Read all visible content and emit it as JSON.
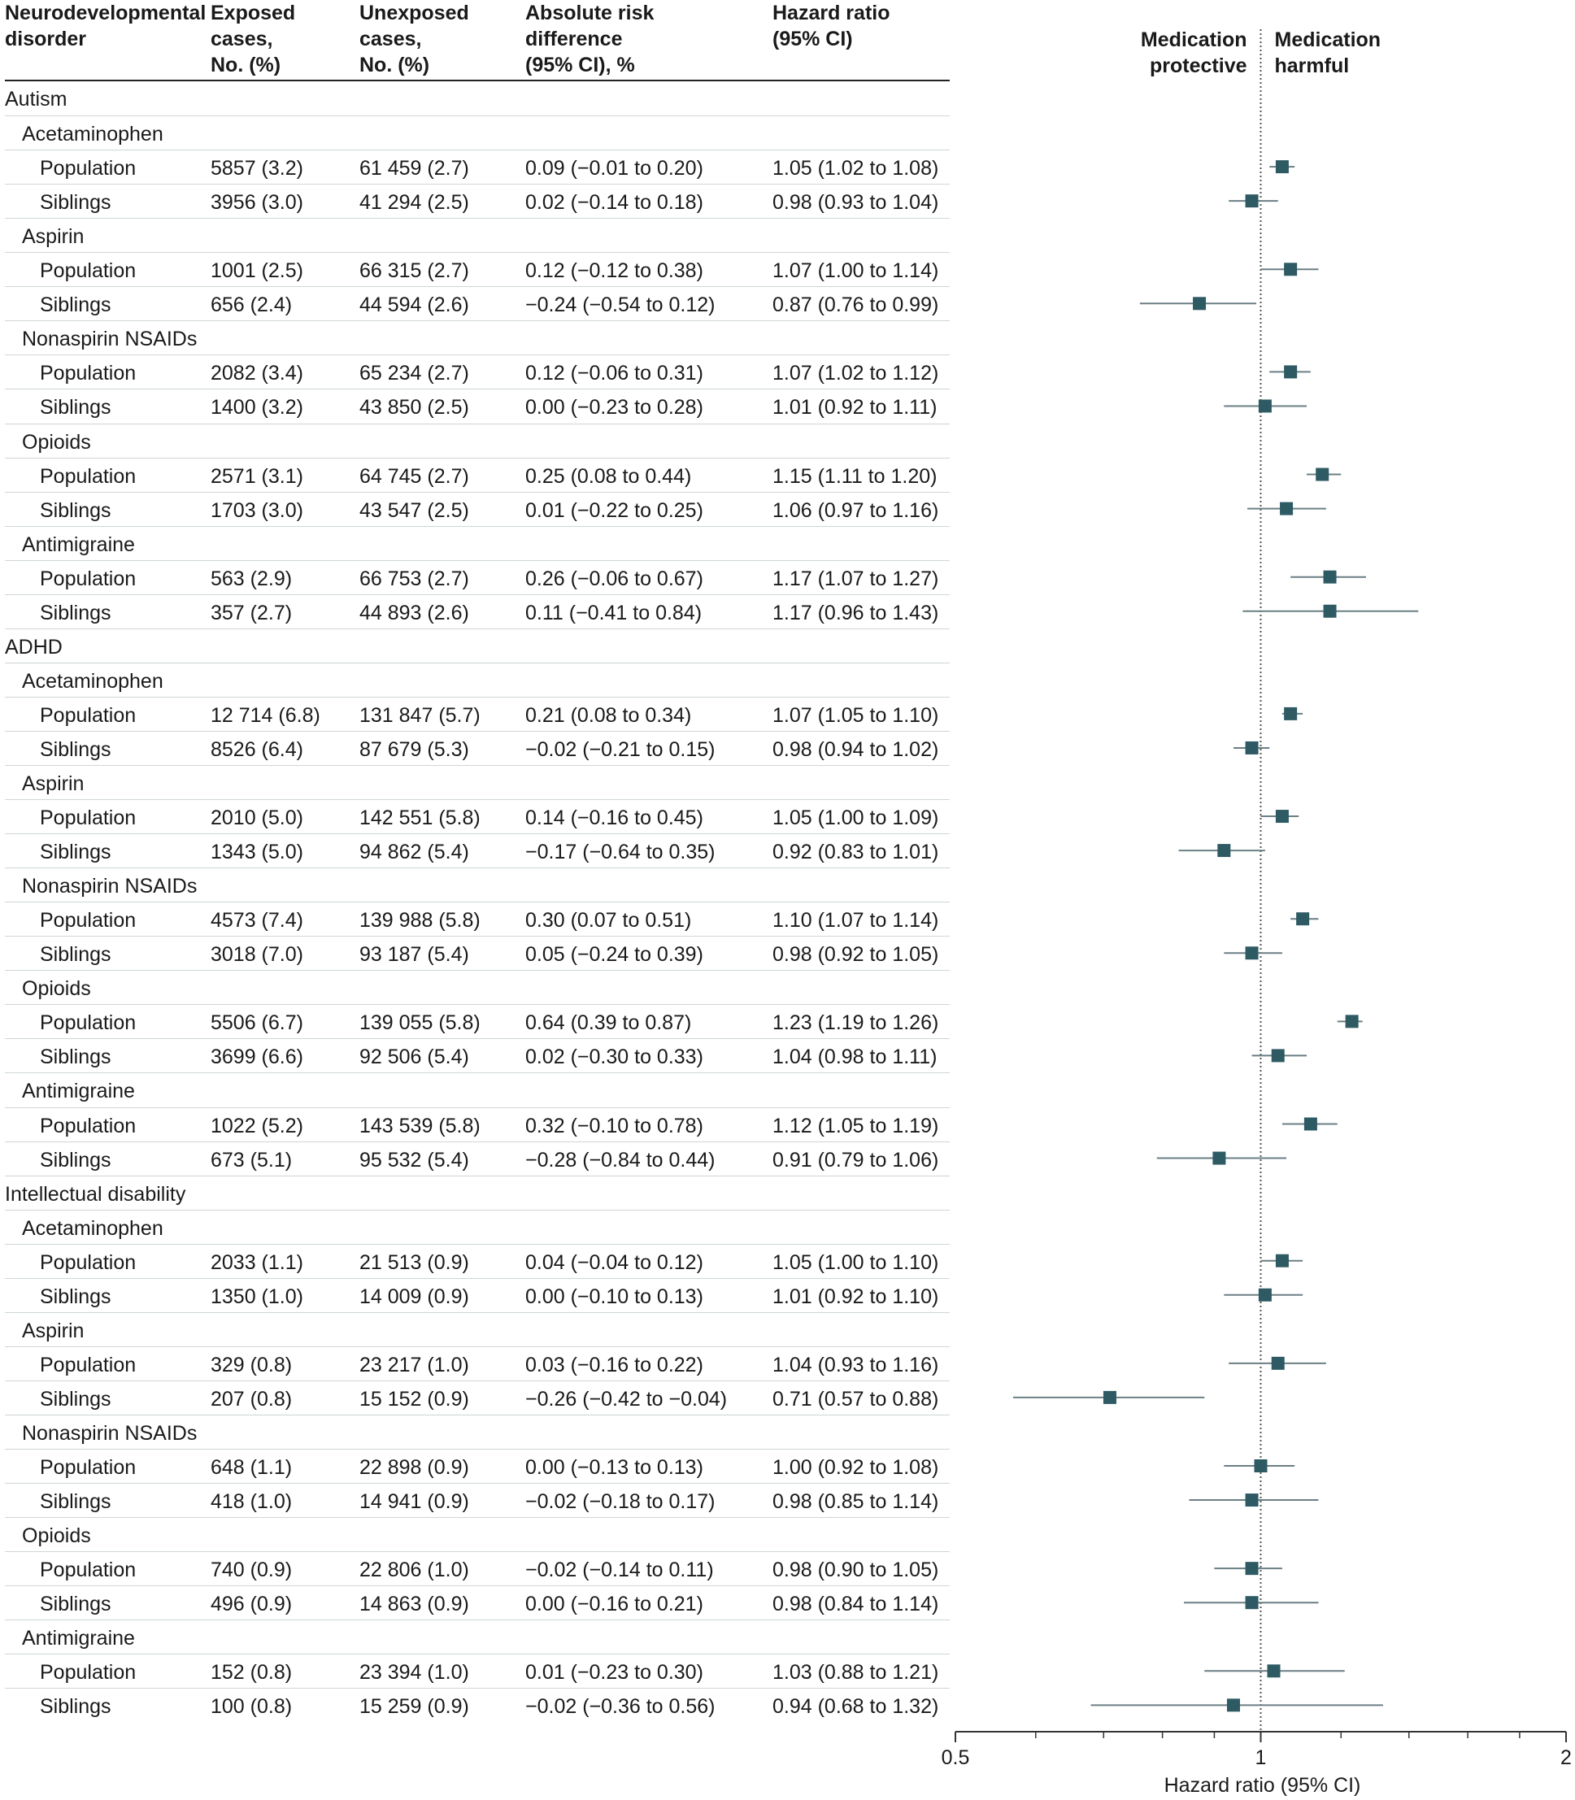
{
  "headers": {
    "disorder": "Neurodevelopmental\ndisorder",
    "exposed": "Exposed\ncases,\nNo. (%)",
    "unexposed": "Unexposed\ncases,\nNo. (%)",
    "ard": "Absolute risk\ndifference\n(95% CI), %",
    "hr": "Hazard ratio\n(95% CI)"
  },
  "annotations": {
    "protective": "Medication\nprotective",
    "harmful": "Medication\nharmful"
  },
  "colors": {
    "marker": "#2e5a64",
    "ci_line": "#6b7f84",
    "axis": "#333333",
    "null_line": "#555555"
  },
  "chart_data": {
    "type": "forest",
    "xlabel": "Hazard ratio (95% CI)",
    "xscale": "log",
    "xlim": [
      0.5,
      2
    ],
    "xticks": [
      0.5,
      1,
      2
    ],
    "xtick_labels": [
      "0.5",
      "1",
      "2"
    ],
    "null_value": 1,
    "grid": false,
    "rows": [
      {
        "kind": "disorder",
        "label": "Autism"
      },
      {
        "kind": "medication",
        "label": "Acetaminophen"
      },
      {
        "kind": "data",
        "label": "Population",
        "exposed": "5857 (3.2)",
        "unexposed": "61 459 (2.7)",
        "ard": "0.09 (−0.01 to 0.20)",
        "hr_text": "1.05 (1.02 to 1.08)",
        "hr": 1.05,
        "lo": 1.02,
        "hi": 1.08
      },
      {
        "kind": "data",
        "label": "Siblings",
        "exposed": "3956 (3.0)",
        "unexposed": "41 294 (2.5)",
        "ard": "0.02 (−0.14 to 0.18)",
        "hr_text": "0.98 (0.93 to 1.04)",
        "hr": 0.98,
        "lo": 0.93,
        "hi": 1.04
      },
      {
        "kind": "medication",
        "label": "Aspirin"
      },
      {
        "kind": "data",
        "label": "Population",
        "exposed": "1001 (2.5)",
        "unexposed": "66 315 (2.7)",
        "ard": "0.12 (−0.12 to 0.38)",
        "hr_text": "1.07 (1.00 to 1.14)",
        "hr": 1.07,
        "lo": 1.0,
        "hi": 1.14
      },
      {
        "kind": "data",
        "label": "Siblings",
        "exposed": "656 (2.4)",
        "unexposed": "44 594 (2.6)",
        "ard": "−0.24 (−0.54 to 0.12)",
        "hr_text": "0.87 (0.76 to 0.99)",
        "hr": 0.87,
        "lo": 0.76,
        "hi": 0.99
      },
      {
        "kind": "medication",
        "label": "Nonaspirin NSAIDs"
      },
      {
        "kind": "data",
        "label": "Population",
        "exposed": "2082 (3.4)",
        "unexposed": "65 234 (2.7)",
        "ard": "0.12 (−0.06 to 0.31)",
        "hr_text": "1.07 (1.02 to 1.12)",
        "hr": 1.07,
        "lo": 1.02,
        "hi": 1.12
      },
      {
        "kind": "data",
        "label": "Siblings",
        "exposed": "1400 (3.2)",
        "unexposed": "43 850 (2.5)",
        "ard": "0.00 (−0.23 to 0.28)",
        "hr_text": "1.01 (0.92 to 1.11)",
        "hr": 1.01,
        "lo": 0.92,
        "hi": 1.11
      },
      {
        "kind": "medication",
        "label": "Opioids"
      },
      {
        "kind": "data",
        "label": "Population",
        "exposed": "2571 (3.1)",
        "unexposed": "64 745 (2.7)",
        "ard": "0.25 (0.08 to 0.44)",
        "hr_text": "1.15 (1.11 to 1.20)",
        "hr": 1.15,
        "lo": 1.11,
        "hi": 1.2
      },
      {
        "kind": "data",
        "label": "Siblings",
        "exposed": "1703 (3.0)",
        "unexposed": "43 547 (2.5)",
        "ard": "0.01 (−0.22 to 0.25)",
        "hr_text": "1.06 (0.97 to 1.16)",
        "hr": 1.06,
        "lo": 0.97,
        "hi": 1.16
      },
      {
        "kind": "medication",
        "label": "Antimigraine"
      },
      {
        "kind": "data",
        "label": "Population",
        "exposed": "563 (2.9)",
        "unexposed": "66 753 (2.7)",
        "ard": "0.26 (−0.06 to 0.67)",
        "hr_text": "1.17 (1.07 to 1.27)",
        "hr": 1.17,
        "lo": 1.07,
        "hi": 1.27
      },
      {
        "kind": "data",
        "label": "Siblings",
        "exposed": "357 (2.7)",
        "unexposed": "44 893 (2.6)",
        "ard": "0.11 (−0.41 to 0.84)",
        "hr_text": "1.17 (0.96 to 1.43)",
        "hr": 1.17,
        "lo": 0.96,
        "hi": 1.43
      },
      {
        "kind": "disorder",
        "label": "ADHD"
      },
      {
        "kind": "medication",
        "label": "Acetaminophen"
      },
      {
        "kind": "data",
        "label": "Population",
        "exposed": "12 714 (6.8)",
        "unexposed": "131 847 (5.7)",
        "ard": "0.21 (0.08 to 0.34)",
        "hr_text": "1.07 (1.05 to 1.10)",
        "hr": 1.07,
        "lo": 1.05,
        "hi": 1.1
      },
      {
        "kind": "data",
        "label": "Siblings",
        "exposed": "8526 (6.4)",
        "unexposed": "87 679 (5.3)",
        "ard": "−0.02 (−0.21 to 0.15)",
        "hr_text": "0.98 (0.94 to 1.02)",
        "hr": 0.98,
        "lo": 0.94,
        "hi": 1.02
      },
      {
        "kind": "medication",
        "label": "Aspirin"
      },
      {
        "kind": "data",
        "label": "Population",
        "exposed": "2010 (5.0)",
        "unexposed": "142 551 (5.8)",
        "ard": "0.14 (−0.16 to 0.45)",
        "hr_text": "1.05 (1.00 to 1.09)",
        "hr": 1.05,
        "lo": 1.0,
        "hi": 1.09
      },
      {
        "kind": "data",
        "label": "Siblings",
        "exposed": "1343 (5.0)",
        "unexposed": "94 862 (5.4)",
        "ard": "−0.17 (−0.64 to 0.35)",
        "hr_text": "0.92 (0.83 to 1.01)",
        "hr": 0.92,
        "lo": 0.83,
        "hi": 1.01
      },
      {
        "kind": "medication",
        "label": "Nonaspirin NSAIDs"
      },
      {
        "kind": "data",
        "label": "Population",
        "exposed": "4573 (7.4)",
        "unexposed": "139 988 (5.8)",
        "ard": "0.30 (0.07 to 0.51)",
        "hr_text": "1.10 (1.07 to 1.14)",
        "hr": 1.1,
        "lo": 1.07,
        "hi": 1.14
      },
      {
        "kind": "data",
        "label": "Siblings",
        "exposed": "3018 (7.0)",
        "unexposed": "93 187 (5.4)",
        "ard": "0.05 (−0.24 to 0.39)",
        "hr_text": "0.98 (0.92 to 1.05)",
        "hr": 0.98,
        "lo": 0.92,
        "hi": 1.05
      },
      {
        "kind": "medication",
        "label": "Opioids"
      },
      {
        "kind": "data",
        "label": "Population",
        "exposed": "5506 (6.7)",
        "unexposed": "139 055 (5.8)",
        "ard": "0.64 (0.39 to 0.87)",
        "hr_text": "1.23 (1.19 to 1.26)",
        "hr": 1.23,
        "lo": 1.19,
        "hi": 1.26
      },
      {
        "kind": "data",
        "label": "Siblings",
        "exposed": "3699 (6.6)",
        "unexposed": "92 506 (5.4)",
        "ard": "0.02 (−0.30 to 0.33)",
        "hr_text": "1.04 (0.98 to 1.11)",
        "hr": 1.04,
        "lo": 0.98,
        "hi": 1.11
      },
      {
        "kind": "medication",
        "label": "Antimigraine"
      },
      {
        "kind": "data",
        "label": "Population",
        "exposed": "1022 (5.2)",
        "unexposed": "143 539 (5.8)",
        "ard": "0.32 (−0.10 to 0.78)",
        "hr_text": "1.12 (1.05 to 1.19)",
        "hr": 1.12,
        "lo": 1.05,
        "hi": 1.19
      },
      {
        "kind": "data",
        "label": "Siblings",
        "exposed": "673 (5.1)",
        "unexposed": "95 532 (5.4)",
        "ard": "−0.28 (−0.84 to 0.44)",
        "hr_text": "0.91 (0.79 to 1.06)",
        "hr": 0.91,
        "lo": 0.79,
        "hi": 1.06
      },
      {
        "kind": "disorder",
        "label": "Intellectual disability"
      },
      {
        "kind": "medication",
        "label": "Acetaminophen"
      },
      {
        "kind": "data",
        "label": "Population",
        "exposed": "2033 (1.1)",
        "unexposed": "21 513 (0.9)",
        "ard": "0.04 (−0.04 to 0.12)",
        "hr_text": "1.05 (1.00 to 1.10)",
        "hr": 1.05,
        "lo": 1.0,
        "hi": 1.1
      },
      {
        "kind": "data",
        "label": "Siblings",
        "exposed": "1350 (1.0)",
        "unexposed": "14 009 (0.9)",
        "ard": "0.00 (−0.10 to 0.13)",
        "hr_text": "1.01 (0.92 to 1.10)",
        "hr": 1.01,
        "lo": 0.92,
        "hi": 1.1
      },
      {
        "kind": "medication",
        "label": "Aspirin"
      },
      {
        "kind": "data",
        "label": "Population",
        "exposed": "329 (0.8)",
        "unexposed": "23 217 (1.0)",
        "ard": "0.03 (−0.16 to 0.22)",
        "hr_text": "1.04 (0.93 to 1.16)",
        "hr": 1.04,
        "lo": 0.93,
        "hi": 1.16
      },
      {
        "kind": "data",
        "label": "Siblings",
        "exposed": "207 (0.8)",
        "unexposed": "15 152 (0.9)",
        "ard": "−0.26 (−0.42 to −0.04)",
        "hr_text": "0.71 (0.57 to 0.88)",
        "hr": 0.71,
        "lo": 0.57,
        "hi": 0.88
      },
      {
        "kind": "medication",
        "label": "Nonaspirin NSAIDs"
      },
      {
        "kind": "data",
        "label": "Population",
        "exposed": "648 (1.1)",
        "unexposed": "22 898 (0.9)",
        "ard": "0.00 (−0.13 to 0.13)",
        "hr_text": "1.00 (0.92 to 1.08)",
        "hr": 1.0,
        "lo": 0.92,
        "hi": 1.08
      },
      {
        "kind": "data",
        "label": "Siblings",
        "exposed": "418 (1.0)",
        "unexposed": "14 941 (0.9)",
        "ard": "−0.02 (−0.18 to 0.17)",
        "hr_text": "0.98 (0.85 to 1.14)",
        "hr": 0.98,
        "lo": 0.85,
        "hi": 1.14
      },
      {
        "kind": "medication",
        "label": "Opioids"
      },
      {
        "kind": "data",
        "label": "Population",
        "exposed": "740 (0.9)",
        "unexposed": "22 806 (1.0)",
        "ard": "−0.02 (−0.14 to 0.11)",
        "hr_text": "0.98 (0.90 to 1.05)",
        "hr": 0.98,
        "lo": 0.9,
        "hi": 1.05
      },
      {
        "kind": "data",
        "label": "Siblings",
        "exposed": "496 (0.9)",
        "unexposed": "14 863 (0.9)",
        "ard": "0.00 (−0.16 to 0.21)",
        "hr_text": "0.98 (0.84 to 1.14)",
        "hr": 0.98,
        "lo": 0.84,
        "hi": 1.14
      },
      {
        "kind": "medication",
        "label": "Antimigraine"
      },
      {
        "kind": "data",
        "label": "Population",
        "exposed": "152 (0.8)",
        "unexposed": "23 394 (1.0)",
        "ard": "0.01 (−0.23 to 0.30)",
        "hr_text": "1.03 (0.88 to 1.21)",
        "hr": 1.03,
        "lo": 0.88,
        "hi": 1.21
      },
      {
        "kind": "data",
        "label": "Siblings",
        "exposed": "100 (0.8)",
        "unexposed": "15 259 (0.9)",
        "ard": "−0.02 (−0.36 to 0.56)",
        "hr_text": "0.94 (0.68 to 1.32)",
        "hr": 0.94,
        "lo": 0.68,
        "hi": 1.32
      }
    ]
  }
}
